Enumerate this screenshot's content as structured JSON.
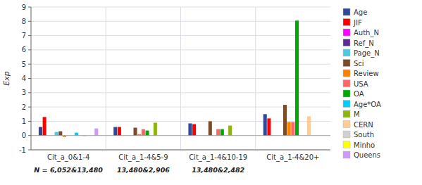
{
  "chart_data": {
    "type": "bar",
    "categories": [
      "Cit_a_0&1-4",
      "Cit_a_1-4&5-9",
      "Cit_a_1-4&10-19",
      "Cit_a_1-4&20+"
    ],
    "series": [
      {
        "name": "Age",
        "color": "#2E4999",
        "values": [
          0.6,
          0.6,
          0.85,
          1.5
        ]
      },
      {
        "name": "JIF",
        "color": "#FF0000",
        "values": [
          1.3,
          0.6,
          0.8,
          1.2
        ]
      },
      {
        "name": "Auth_N",
        "color": "#FF00FF",
        "values": [
          0.0,
          0.0,
          0.0,
          0.0
        ]
      },
      {
        "name": "Ref_N",
        "color": "#5B2D8E",
        "values": [
          0.0,
          0.0,
          0.0,
          0.0
        ]
      },
      {
        "name": "Page_N",
        "color": "#4EC9E1",
        "values": [
          0.25,
          0.0,
          0.0,
          0.0
        ]
      },
      {
        "name": "Sci",
        "color": "#7B4B2A",
        "values": [
          0.3,
          0.55,
          1.0,
          2.15
        ]
      },
      {
        "name": "Review",
        "color": "#FF8000",
        "values": [
          -0.1,
          0.1,
          0.0,
          0.95
        ]
      },
      {
        "name": "USA",
        "color": "#FF6666",
        "values": [
          0.0,
          0.45,
          0.45,
          0.95
        ]
      },
      {
        "name": "OA",
        "color": "#00AA00",
        "values": [
          0.0,
          0.35,
          0.45,
          8.05
        ]
      },
      {
        "name": "Age*OA",
        "color": "#00CCFF",
        "values": [
          0.2,
          0.0,
          0.0,
          0.0
        ]
      },
      {
        "name": "M",
        "color": "#8DB510",
        "values": [
          0.0,
          0.9,
          0.7,
          0.0
        ]
      },
      {
        "name": "CERN",
        "color": "#FFCC99",
        "values": [
          -0.05,
          0.0,
          0.0,
          1.35
        ]
      },
      {
        "name": "South",
        "color": "#D0D0D0",
        "values": [
          0.0,
          0.0,
          0.0,
          0.0
        ]
      },
      {
        "name": "Minho",
        "color": "#FFFF00",
        "values": [
          0.0,
          0.0,
          0.0,
          0.0
        ]
      },
      {
        "name": "Queens",
        "color": "#CC99FF",
        "values": [
          0.5,
          0.0,
          0.0,
          0.0
        ]
      }
    ],
    "annotations": [
      {
        "text": "N = 6,052&13,480",
        "category": "Cit_a_0&1-4"
      },
      {
        "text": "13,480&2,906",
        "category": "Cit_a_1-4&5-9"
      },
      {
        "text": "13,480&2,482",
        "category": "Cit_a_1-4&10-19"
      }
    ],
    "ylim": [
      -1,
      9
    ],
    "yticks": [
      -1,
      0,
      1,
      2,
      3,
      4,
      5,
      6,
      7,
      8,
      9
    ],
    "ylabel": "Exp",
    "grid": true,
    "legend": "right"
  }
}
